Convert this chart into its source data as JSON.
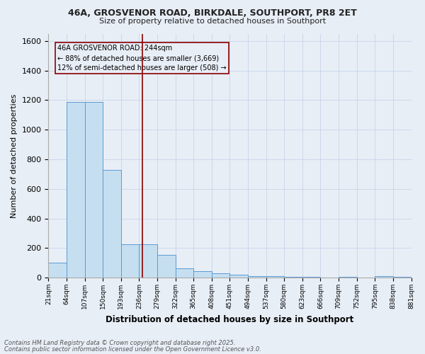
{
  "title1": "46A, GROSVENOR ROAD, BIRKDALE, SOUTHPORT, PR8 2ET",
  "title2": "Size of property relative to detached houses in Southport",
  "xlabel": "Distribution of detached houses by size in Southport",
  "ylabel": "Number of detached properties",
  "annotation_lines": [
    "46A GROSVENOR ROAD: 244sqm",
    "← 88% of detached houses are smaller (3,669)",
    "12% of semi-detached houses are larger (508) →"
  ],
  "property_size": 244,
  "bins": [
    21,
    64,
    107,
    150,
    193,
    236,
    279,
    322,
    365,
    408,
    451,
    494,
    537,
    580,
    623,
    666,
    709,
    752,
    795,
    838,
    881
  ],
  "counts": [
    100,
    1190,
    1190,
    730,
    225,
    225,
    155,
    65,
    45,
    30,
    20,
    10,
    8,
    5,
    5,
    0,
    5,
    0,
    10,
    5
  ],
  "bar_color": "#c5dff0",
  "bar_edge_color": "#5b9bd5",
  "vline_color": "#8b0000",
  "annotation_box_color": "#8b0000",
  "grid_color": "#c8d4e8",
  "bg_color": "#e8eef6",
  "ylim": [
    0,
    1650
  ],
  "yticks": [
    0,
    200,
    400,
    600,
    800,
    1000,
    1200,
    1400,
    1600
  ],
  "footnote1": "Contains HM Land Registry data © Crown copyright and database right 2025.",
  "footnote2": "Contains public sector information licensed under the Open Government Licence v3.0."
}
